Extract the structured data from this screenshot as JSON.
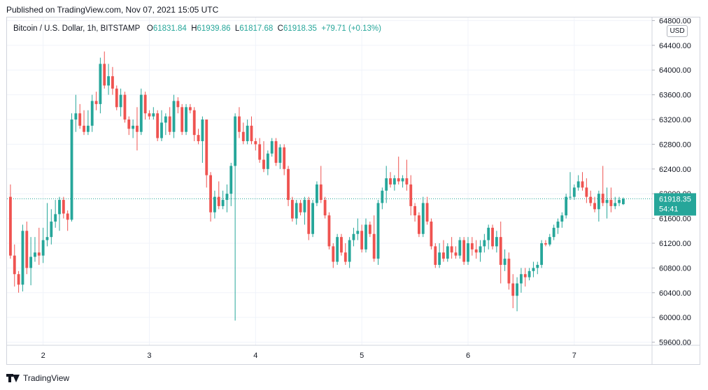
{
  "header": {
    "published": "Published on TradingView.com, Nov 07, 2021 15:05 UTC"
  },
  "legend": {
    "symbol": "Bitcoin / U.S. Dollar, 1h, BITSTAMP",
    "o_label": "O",
    "o_value": "61831.84",
    "h_label": "H",
    "h_value": "61939.86",
    "l_label": "L",
    "l_value": "61817.68",
    "c_label": "C",
    "c_value": "61918.35",
    "change": "+79.71 (+0.13%)"
  },
  "currency_badge": "USD",
  "last_price": {
    "price": "61918.35",
    "countdown": "54:41"
  },
  "footer": {
    "brand": "TradingView"
  },
  "colors": {
    "up": "#26a69a",
    "down": "#ef5350",
    "grid": "#f0f3fa",
    "text": "#131722"
  },
  "chart_data": {
    "type": "candlestick",
    "title": "Bitcoin / U.S. Dollar, 1h, BITSTAMP",
    "y_ticks": [
      "59600.00",
      "60000.00",
      "60400.00",
      "60800.00",
      "61200.00",
      "61600.00",
      "62000.00",
      "62400.00",
      "62800.00",
      "63200.00",
      "63600.00",
      "64000.00",
      "64400.00",
      "64800.00"
    ],
    "ylim": [
      59550,
      64850
    ],
    "x_ticks": [
      {
        "label": "2",
        "bar": 8
      },
      {
        "label": "3",
        "bar": 34
      },
      {
        "label": "4",
        "bar": 60
      },
      {
        "label": "5",
        "bar": 86
      },
      {
        "label": "6",
        "bar": 112
      },
      {
        "label": "7",
        "bar": 138
      }
    ],
    "last_close": 61918.35,
    "candles": [
      [
        61950,
        62150,
        60950,
        61000
      ],
      [
        61000,
        61180,
        60500,
        60700
      ],
      [
        60700,
        60750,
        60400,
        60530
      ],
      [
        60530,
        61500,
        60420,
        61400
      ],
      [
        61400,
        61550,
        60700,
        60800
      ],
      [
        60800,
        61300,
        60520,
        60980
      ],
      [
        60980,
        61300,
        60900,
        61050
      ],
      [
        61050,
        61450,
        60850,
        61000
      ],
      [
        61000,
        61450,
        60880,
        61250
      ],
      [
        61250,
        61850,
        61150,
        61300
      ],
      [
        61300,
        61750,
        61180,
        61550
      ],
      [
        61550,
        61900,
        61450,
        61670
      ],
      [
        61670,
        61950,
        61400,
        61900
      ],
      [
        61900,
        61950,
        61600,
        61680
      ],
      [
        61680,
        61730,
        61400,
        61580
      ],
      [
        61580,
        63300,
        61550,
        63200
      ],
      [
        63200,
        63600,
        63000,
        63300
      ],
      [
        63300,
        63450,
        63050,
        63100
      ],
      [
        63100,
        63350,
        62950,
        63000
      ],
      [
        63000,
        63350,
        62950,
        63100
      ],
      [
        63100,
        63600,
        63000,
        63500
      ],
      [
        63500,
        63650,
        63350,
        63450
      ],
      [
        63450,
        64200,
        63300,
        64100
      ],
      [
        64100,
        64300,
        63700,
        63750
      ],
      [
        63750,
        64100,
        63600,
        63900
      ],
      [
        63900,
        64050,
        63600,
        63700
      ],
      [
        63700,
        63750,
        63350,
        63400
      ],
      [
        63400,
        63700,
        63250,
        63600
      ],
      [
        63600,
        63650,
        63150,
        63200
      ],
      [
        63200,
        63250,
        62950,
        63050
      ],
      [
        63050,
        63200,
        62900,
        63100
      ],
      [
        63100,
        63400,
        62700,
        63000
      ],
      [
        63000,
        63700,
        62950,
        63600
      ],
      [
        63600,
        63650,
        63200,
        63300
      ],
      [
        63300,
        63350,
        63200,
        63250
      ],
      [
        63250,
        63400,
        63200,
        63300
      ],
      [
        63300,
        63350,
        62850,
        62900
      ],
      [
        62900,
        63350,
        62850,
        63150
      ],
      [
        63150,
        63300,
        62950,
        63250
      ],
      [
        63250,
        63400,
        62950,
        63000
      ],
      [
        63000,
        63600,
        62900,
        63500
      ],
      [
        63500,
        63560,
        63300,
        63400
      ],
      [
        63400,
        63450,
        62950,
        63000
      ],
      [
        63000,
        63450,
        62950,
        63400
      ],
      [
        63400,
        63450,
        63300,
        63350
      ],
      [
        63350,
        63400,
        62850,
        62950
      ],
      [
        62950,
        63050,
        62800,
        62850
      ],
      [
        62850,
        63250,
        62500,
        63200
      ],
      [
        63200,
        63200,
        62100,
        62300
      ],
      [
        62300,
        62350,
        61550,
        61700
      ],
      [
        61700,
        62050,
        61600,
        61950
      ],
      [
        61950,
        62200,
        61750,
        61800
      ],
      [
        61800,
        62050,
        61750,
        61900
      ],
      [
        61900,
        62150,
        61700,
        62000
      ],
      [
        62000,
        62500,
        61800,
        62450
      ],
      [
        62450,
        63300,
        59950,
        63250
      ],
      [
        63250,
        63400,
        62900,
        63000
      ],
      [
        63000,
        63150,
        62800,
        62850
      ],
      [
        62850,
        63200,
        62800,
        63100
      ],
      [
        63100,
        63250,
        62800,
        62850
      ],
      [
        62850,
        62900,
        62700,
        62800
      ],
      [
        62800,
        62900,
        62500,
        62550
      ],
      [
        62550,
        62850,
        62350,
        62400
      ],
      [
        62400,
        62700,
        62300,
        62650
      ],
      [
        62650,
        62900,
        62600,
        62850
      ],
      [
        62850,
        62900,
        62450,
        62500
      ],
      [
        62500,
        62800,
        62400,
        62750
      ],
      [
        62750,
        62800,
        62300,
        62400
      ],
      [
        62400,
        62450,
        61800,
        61900
      ],
      [
        61900,
        61950,
        61550,
        61600
      ],
      [
        61600,
        61900,
        61500,
        61850
      ],
      [
        61850,
        61900,
        61650,
        61700
      ],
      [
        61700,
        61950,
        61500,
        61900
      ],
      [
        61900,
        61950,
        61250,
        61350
      ],
      [
        61350,
        61900,
        61300,
        61850
      ],
      [
        61850,
        62200,
        61800,
        62150
      ],
      [
        62150,
        62450,
        61850,
        61900
      ],
      [
        61900,
        61950,
        61600,
        61650
      ],
      [
        61650,
        61700,
        61100,
        61150
      ],
      [
        61150,
        61200,
        60800,
        60900
      ],
      [
        60900,
        61350,
        60850,
        61300
      ],
      [
        61300,
        61350,
        61000,
        61050
      ],
      [
        61050,
        61200,
        60850,
        60900
      ],
      [
        60900,
        61300,
        60800,
        61250
      ],
      [
        61250,
        61450,
        61150,
        61350
      ],
      [
        61350,
        61600,
        61250,
        61400
      ],
      [
        61400,
        61500,
        61050,
        61100
      ],
      [
        61100,
        61600,
        61050,
        61500
      ],
      [
        61500,
        61550,
        61300,
        61350
      ],
      [
        61350,
        61650,
        60900,
        60950
      ],
      [
        60950,
        61900,
        60850,
        61850
      ],
      [
        61850,
        62100,
        61750,
        62050
      ],
      [
        62050,
        62450,
        61850,
        62250
      ],
      [
        62250,
        62350,
        62100,
        62150
      ],
      [
        62150,
        62300,
        62050,
        62250
      ],
      [
        62250,
        62600,
        62150,
        62200
      ],
      [
        62200,
        62300,
        62100,
        62250
      ],
      [
        62250,
        62550,
        62050,
        62150
      ],
      [
        62150,
        62300,
        61650,
        61800
      ],
      [
        61800,
        61850,
        61550,
        61650
      ],
      [
        61650,
        61700,
        61300,
        61350
      ],
      [
        61350,
        61950,
        61300,
        61850
      ],
      [
        61850,
        61950,
        61500,
        61550
      ],
      [
        61550,
        61600,
        61100,
        61150
      ],
      [
        61150,
        61200,
        60800,
        60850
      ],
      [
        60850,
        61200,
        60800,
        61050
      ],
      [
        61050,
        61250,
        60900,
        60950
      ],
      [
        60950,
        61200,
        60900,
        61150
      ],
      [
        61150,
        61300,
        60950,
        61050
      ],
      [
        61050,
        61150,
        60950,
        61000
      ],
      [
        61000,
        61300,
        60950,
        61250
      ],
      [
        61250,
        61300,
        60850,
        60900
      ],
      [
        60900,
        61300,
        60850,
        61200
      ],
      [
        61200,
        61300,
        61000,
        61100
      ],
      [
        61100,
        61250,
        60950,
        61050
      ],
      [
        61050,
        61250,
        60900,
        61150
      ],
      [
        61150,
        61350,
        61050,
        61250
      ],
      [
        61250,
        61500,
        61100,
        61450
      ],
      [
        61450,
        61500,
        61100,
        61150
      ],
      [
        61150,
        61400,
        61050,
        61300
      ],
      [
        61300,
        61550,
        60550,
        60850
      ],
      [
        60850,
        61100,
        60750,
        60950
      ],
      [
        60950,
        61050,
        60450,
        60550
      ],
      [
        60550,
        60700,
        60150,
        60350
      ],
      [
        60350,
        60650,
        60100,
        60550
      ],
      [
        60550,
        60800,
        60400,
        60700
      ],
      [
        60700,
        60800,
        60500,
        60650
      ],
      [
        60650,
        60800,
        60600,
        60750
      ],
      [
        60750,
        60900,
        60650,
        60800
      ],
      [
        60800,
        60900,
        60700,
        60850
      ],
      [
        60850,
        61250,
        60800,
        61200
      ],
      [
        61200,
        61250,
        61150,
        61180
      ],
      [
        61180,
        61350,
        61150,
        61300
      ],
      [
        61300,
        61500,
        61250,
        61450
      ],
      [
        61450,
        61600,
        61350,
        61550
      ],
      [
        61550,
        61700,
        61450,
        61650
      ],
      [
        61650,
        62000,
        61600,
        61950
      ],
      [
        61950,
        62350,
        61900,
        61950
      ],
      [
        61950,
        62150,
        61900,
        62100
      ],
      [
        62100,
        62300,
        62050,
        62200
      ],
      [
        62200,
        62350,
        62050,
        62100
      ],
      [
        62100,
        62250,
        61850,
        61950
      ],
      [
        61950,
        62050,
        61800,
        61850
      ],
      [
        61850,
        61950,
        61700,
        61750
      ],
      [
        61750,
        62050,
        61550,
        62000
      ],
      [
        62000,
        62450,
        61800,
        61850
      ],
      [
        61850,
        62100,
        61600,
        61900
      ],
      [
        61900,
        62100,
        61700,
        61800
      ],
      [
        61800,
        61950,
        61750,
        61850
      ],
      [
        61850,
        61950,
        61800,
        61900
      ],
      [
        61831.84,
        61939.86,
        61817.68,
        61918.35
      ]
    ]
  }
}
